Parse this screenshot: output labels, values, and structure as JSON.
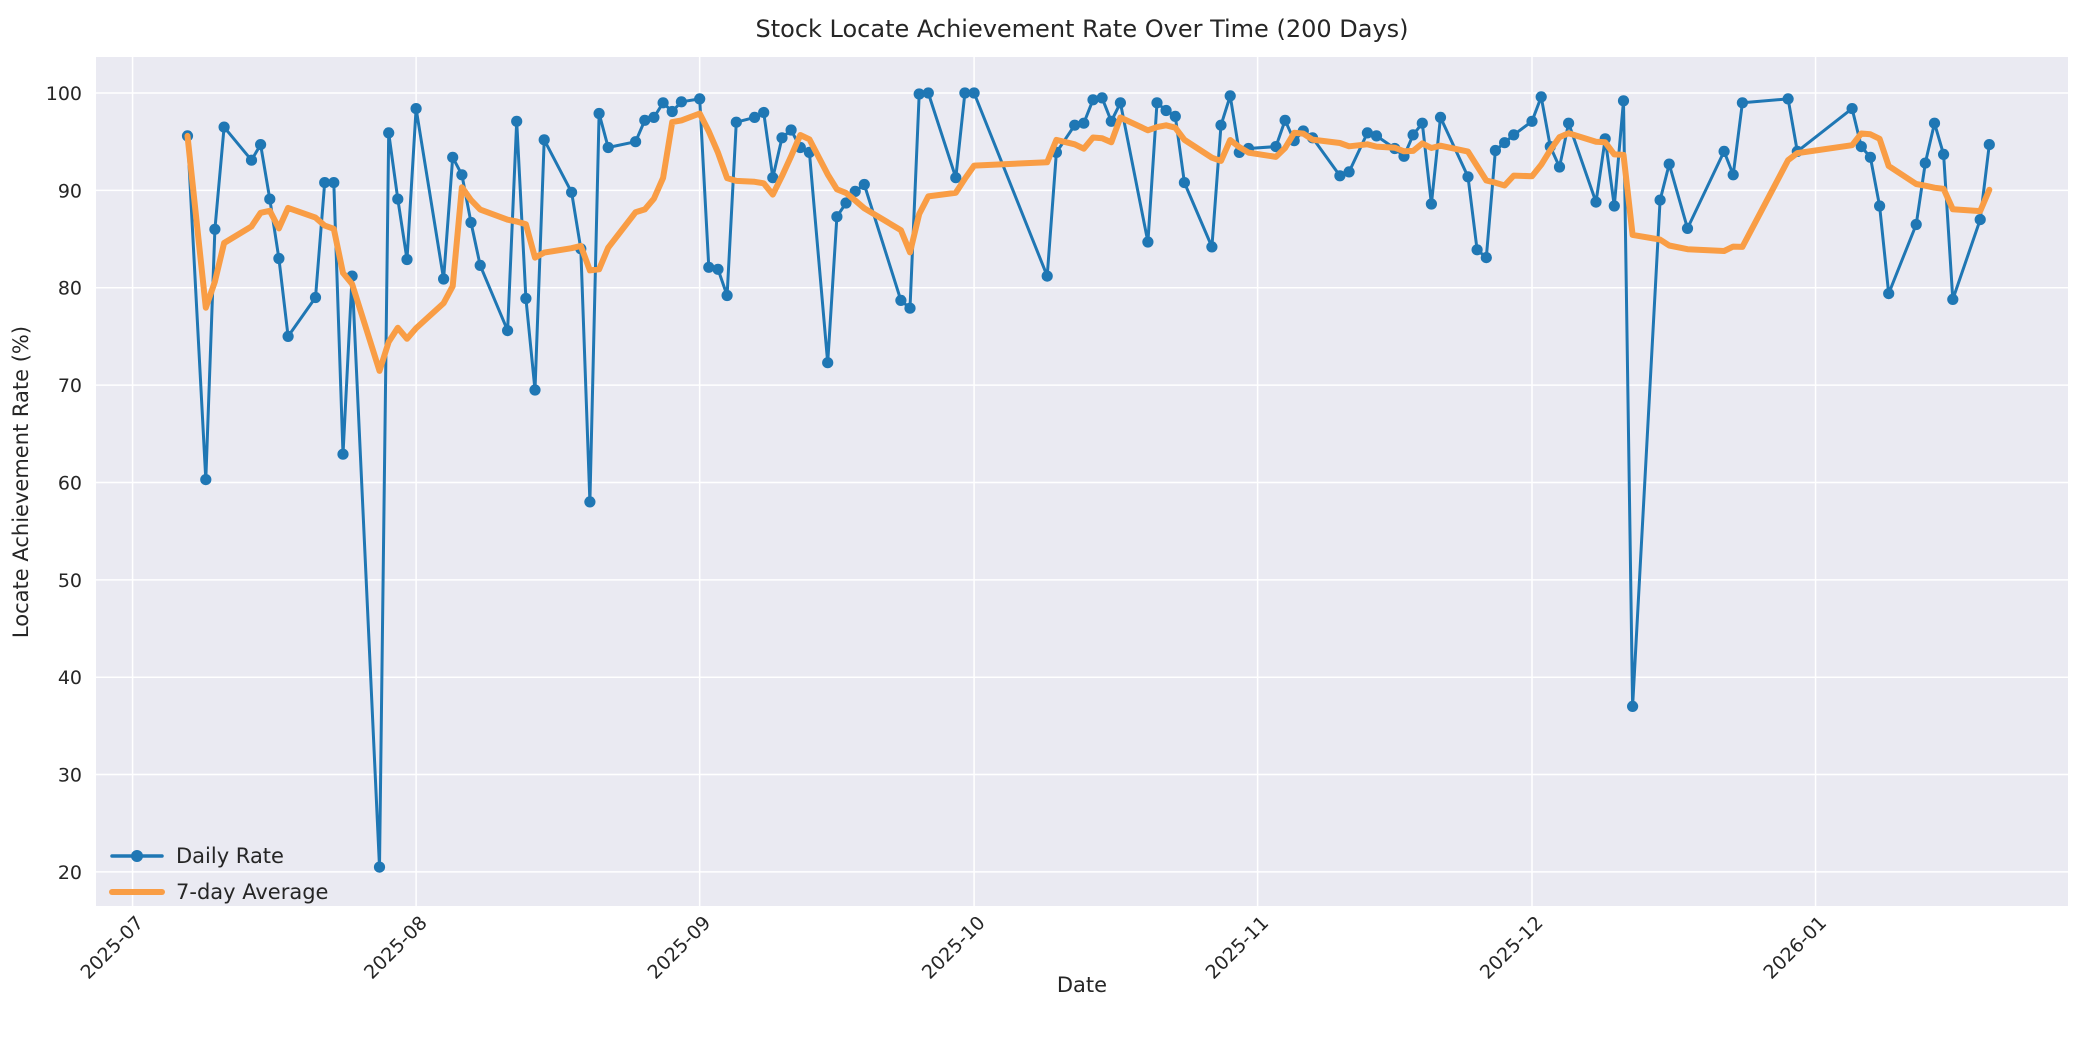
{
  "chart_data": {
    "type": "line",
    "title": "Stock Locate Achievement Rate Over Time (200 Days)",
    "xlabel": "Date",
    "ylabel": "Locate Achievement Rate (%)",
    "grid": true,
    "plot_background": "#eaeaf2",
    "gridline_color": "#ffffff",
    "text_color": "#262626",
    "ylim": [
      16.5,
      103.7
    ],
    "y_ticks": [
      20,
      30,
      40,
      50,
      60,
      70,
      80,
      90,
      100
    ],
    "x_tick_labels": [
      "2025-07",
      "2025-08",
      "2025-09",
      "2025-10",
      "2025-11",
      "2025-12",
      "2026-01"
    ],
    "x_tick_day_offsets": [
      0,
      31,
      62,
      92,
      123,
      153,
      184
    ],
    "x_origin_date": "2025-07-01",
    "legend_position": "lower left",
    "legend": [
      {
        "label": "Daily Rate",
        "color": "#1f77b4",
        "marker": true
      },
      {
        "label": "7-day Average",
        "color": "#f99d45",
        "marker": false
      }
    ],
    "series": [
      {
        "name": "Daily Rate",
        "color": "#1f77b4",
        "dates": [
          "2025-07-07",
          "2025-07-09",
          "2025-07-10",
          "2025-07-11",
          "2025-07-14",
          "2025-07-15",
          "2025-07-16",
          "2025-07-17",
          "2025-07-18",
          "2025-07-21",
          "2025-07-22",
          "2025-07-23",
          "2025-07-24",
          "2025-07-25",
          "2025-07-28",
          "2025-07-29",
          "2025-07-30",
          "2025-07-31",
          "2025-08-01",
          "2025-08-04",
          "2025-08-05",
          "2025-08-06",
          "2025-08-07",
          "2025-08-08",
          "2025-08-11",
          "2025-08-12",
          "2025-08-13",
          "2025-08-14",
          "2025-08-15",
          "2025-08-18",
          "2025-08-19",
          "2025-08-20",
          "2025-08-21",
          "2025-08-22",
          "2025-08-25",
          "2025-08-26",
          "2025-08-27",
          "2025-08-28",
          "2025-08-29",
          "2025-08-30",
          "2025-09-01",
          "2025-09-02",
          "2025-09-03",
          "2025-09-04",
          "2025-09-05",
          "2025-09-07",
          "2025-09-08",
          "2025-09-09",
          "2025-09-10",
          "2025-09-11",
          "2025-09-12",
          "2025-09-13",
          "2025-09-15",
          "2025-09-16",
          "2025-09-17",
          "2025-09-18",
          "2025-09-19",
          "2025-09-23",
          "2025-09-24",
          "2025-09-25",
          "2025-09-26",
          "2025-09-29",
          "2025-09-30",
          "2025-10-01",
          "2025-10-09",
          "2025-10-10",
          "2025-10-12",
          "2025-10-13",
          "2025-10-14",
          "2025-10-15",
          "2025-10-16",
          "2025-10-17",
          "2025-10-20",
          "2025-10-21",
          "2025-10-22",
          "2025-10-23",
          "2025-10-24",
          "2025-10-27",
          "2025-10-28",
          "2025-10-29",
          "2025-10-30",
          "2025-10-31",
          "2025-11-03",
          "2025-11-04",
          "2025-11-05",
          "2025-11-06",
          "2025-11-07",
          "2025-11-10",
          "2025-11-11",
          "2025-11-13",
          "2025-11-14",
          "2025-11-16",
          "2025-11-17",
          "2025-11-18",
          "2025-11-19",
          "2025-11-20",
          "2025-11-21",
          "2025-11-24",
          "2025-11-25",
          "2025-11-26",
          "2025-11-27",
          "2025-11-28",
          "2025-11-29",
          "2025-12-01",
          "2025-12-02",
          "2025-12-03",
          "2025-12-04",
          "2025-12-05",
          "2025-12-08",
          "2025-12-09",
          "2025-12-10",
          "2025-12-11",
          "2025-12-12",
          "2025-12-15",
          "2025-12-16",
          "2025-12-18",
          "2025-12-22",
          "2025-12-23",
          "2025-12-24",
          "2025-12-29",
          "2025-12-30",
          "2026-01-05",
          "2026-01-06",
          "2026-01-07",
          "2026-01-08",
          "2026-01-09",
          "2026-01-12",
          "2026-01-13",
          "2026-01-14",
          "2026-01-15",
          "2026-01-16",
          "2026-01-19",
          "2026-01-20"
        ],
        "values": [
          95.6,
          60.3,
          86.0,
          96.5,
          93.1,
          94.7,
          89.1,
          83.0,
          75.0,
          79.0,
          90.8,
          90.8,
          62.9,
          81.2,
          20.5,
          95.9,
          89.1,
          82.9,
          98.4,
          80.9,
          93.4,
          91.6,
          86.7,
          82.3,
          75.6,
          97.1,
          78.9,
          69.5,
          95.2,
          89.8,
          84.0,
          58.0,
          97.9,
          94.4,
          95.0,
          97.2,
          97.5,
          99.0,
          98.1,
          99.1,
          99.4,
          82.1,
          81.9,
          79.2,
          97.0,
          97.5,
          98.0,
          91.3,
          95.4,
          96.2,
          94.4,
          93.9,
          72.3,
          87.3,
          88.7,
          89.9,
          90.6,
          78.7,
          77.9,
          99.9,
          100.0,
          91.3,
          100.0,
          100.0,
          81.2,
          93.9,
          96.7,
          96.9,
          99.3,
          99.5,
          97.1,
          99.0,
          84.7,
          99.0,
          98.2,
          97.6,
          90.8,
          84.2,
          96.7,
          99.7,
          93.9,
          94.3,
          94.5,
          97.2,
          95.1,
          96.1,
          95.4,
          91.5,
          91.9,
          95.9,
          95.6,
          94.3,
          93.5,
          95.7,
          96.9,
          88.6,
          97.5,
          91.4,
          83.9,
          83.1,
          94.1,
          94.9,
          95.7,
          97.1,
          99.6,
          94.5,
          92.4,
          96.9,
          88.8,
          95.3,
          88.4,
          99.2,
          37.0,
          89.0,
          92.7,
          86.1,
          94.0,
          91.6,
          99.0,
          99.4,
          94.0,
          98.4,
          94.5,
          93.4,
          88.4,
          79.4,
          86.5,
          92.8,
          96.9,
          93.7,
          78.8,
          87.0,
          94.7
        ]
      },
      {
        "name": "7-day Average",
        "color": "#f99d45",
        "derivation": "rolling mean of the 7 most recent Daily Rate points (min_periods=1), plotted at the same dates"
      }
    ]
  }
}
